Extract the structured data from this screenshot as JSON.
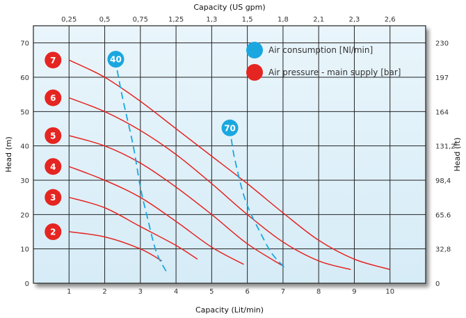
{
  "chart_data": {
    "type": "line",
    "axes": {
      "x_bottom": {
        "label": "Capacity (Lit/min)",
        "range": [
          0,
          11
        ],
        "ticks": [
          "1",
          "2",
          "3",
          "4",
          "5",
          "6",
          "7",
          "8",
          "9",
          "10"
        ],
        "tick_values": [
          1,
          2,
          3,
          4,
          5,
          6,
          7,
          8,
          9,
          10
        ]
      },
      "x_top": {
        "label": "Capacity (US gpm)",
        "ticks": [
          "0,25",
          "0,5",
          "0,75",
          "1,25",
          "1,3",
          "1,5",
          "1,8",
          "2,1",
          "2,3",
          "2,6"
        ]
      },
      "y_left": {
        "label": "Head (m)",
        "range": [
          0,
          75
        ],
        "ticks": [
          "0",
          "10",
          "20",
          "30",
          "40",
          "50",
          "60",
          "70"
        ],
        "tick_values": [
          0,
          10,
          20,
          30,
          40,
          50,
          60,
          70
        ]
      },
      "y_right": {
        "label": "Head (ft)",
        "ticks": [
          "0",
          "32,8",
          "65.6",
          "98,4",
          "131,2",
          "164",
          "197",
          "230"
        ]
      }
    },
    "grid": true,
    "legend": {
      "placement": "top-right",
      "items": [
        {
          "label": "Air consumption   [Nl/min]",
          "color": "#1aa7e0"
        },
        {
          "label": "Air pressure - main supply   [bar]",
          "color": "#e52521"
        }
      ]
    },
    "pressure_series": [
      {
        "label": "2",
        "color": "#e52521",
        "points": [
          [
            1,
            15
          ],
          [
            2,
            13.5
          ],
          [
            3,
            10
          ],
          [
            3.6,
            6.5
          ]
        ]
      },
      {
        "label": "3",
        "color": "#e52521",
        "points": [
          [
            1,
            25
          ],
          [
            2,
            22
          ],
          [
            3,
            16.5
          ],
          [
            4,
            11
          ],
          [
            4.6,
            7
          ]
        ]
      },
      {
        "label": "4",
        "color": "#e52521",
        "points": [
          [
            1,
            34
          ],
          [
            2,
            30
          ],
          [
            3,
            25
          ],
          [
            4,
            18
          ],
          [
            5,
            10.5
          ],
          [
            5.9,
            5.5
          ]
        ]
      },
      {
        "label": "5",
        "color": "#e52521",
        "points": [
          [
            1,
            43
          ],
          [
            2,
            40
          ],
          [
            3,
            35
          ],
          [
            4,
            28
          ],
          [
            5,
            20
          ],
          [
            6,
            11.5
          ],
          [
            7,
            5
          ]
        ]
      },
      {
        "label": "6",
        "color": "#e52521",
        "points": [
          [
            1,
            54
          ],
          [
            2,
            50
          ],
          [
            3,
            44.5
          ],
          [
            4,
            37.5
          ],
          [
            5,
            29
          ],
          [
            6,
            20
          ],
          [
            7,
            12
          ],
          [
            8,
            6.5
          ],
          [
            8.9,
            4
          ]
        ]
      },
      {
        "label": "7",
        "color": "#e52521",
        "points": [
          [
            1,
            65
          ],
          [
            2,
            60
          ],
          [
            3,
            53
          ],
          [
            4,
            45
          ],
          [
            5,
            37
          ],
          [
            6,
            29
          ],
          [
            7,
            20.5
          ],
          [
            8,
            12.5
          ],
          [
            9,
            7
          ],
          [
            10,
            4
          ]
        ]
      }
    ],
    "air_series": [
      {
        "label": "40",
        "color": "#1aa7e0",
        "points": [
          [
            2.35,
            62
          ],
          [
            2.5,
            54
          ],
          [
            2.8,
            40
          ],
          [
            3.0,
            28
          ],
          [
            3.2,
            19
          ],
          [
            3.45,
            9
          ],
          [
            3.75,
            3
          ]
        ]
      },
      {
        "label": "70",
        "color": "#1aa7e0",
        "points": [
          [
            5.55,
            42
          ],
          [
            5.65,
            36
          ],
          [
            5.95,
            24
          ],
          [
            6.4,
            14
          ],
          [
            6.7,
            8.5
          ],
          [
            7.05,
            4.5
          ]
        ]
      }
    ]
  }
}
